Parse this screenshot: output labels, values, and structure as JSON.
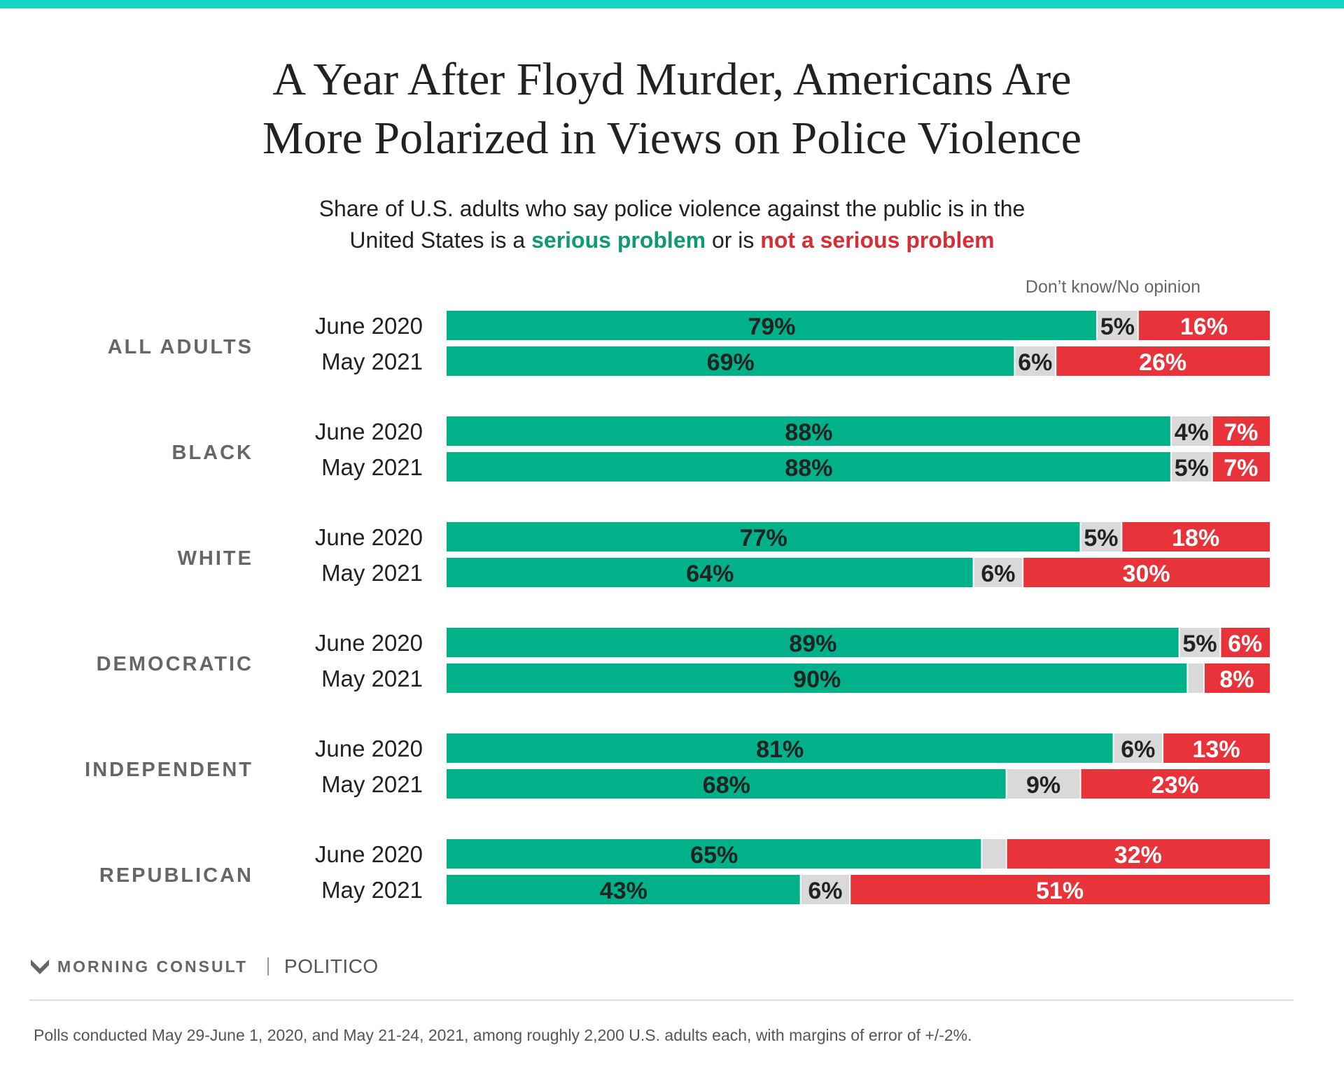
{
  "colors": {
    "serious": "#00b189",
    "dont_know": "#d9d9d9",
    "not_serious": "#e8333a",
    "top_stripe": "#14d4c4"
  },
  "header": {
    "title_line1": "A Year After Floyd Murder, Americans Are",
    "title_line2": "More Polarized in Views on Police Violence",
    "subtitle_line1": "Share of U.S. adults who say police violence against the public is in the",
    "subtitle_line2_pre": "United States is a ",
    "subtitle_serious": "serious problem",
    "subtitle_mid": " or is ",
    "subtitle_not_serious": "not a serious problem"
  },
  "chart_data": {
    "type": "bar",
    "orientation": "horizontal",
    "stacked": true,
    "normalized_total": 100,
    "unit": "%",
    "title": "A Year After Floyd Murder, Americans Are More Polarized in Views on Police Violence",
    "subtitle": "Share of U.S. adults who say police violence against the public is in the United States is a serious problem or is not a serious problem",
    "legend_note": "Don’t know/No opinion",
    "series_names": [
      "serious problem",
      "Don’t know/No opinion",
      "not a serious problem"
    ],
    "groups": [
      {
        "group": "ALL ADULTS",
        "rows": [
          {
            "label": "June 2020",
            "serious": 79,
            "dont_know": 5,
            "not_serious": 16
          },
          {
            "label": "May 2021",
            "serious": 69,
            "dont_know": 6,
            "not_serious": 26
          }
        ]
      },
      {
        "group": "BLACK",
        "rows": [
          {
            "label": "June 2020",
            "serious": 88,
            "dont_know": 4,
            "not_serious": 7
          },
          {
            "label": "May 2021",
            "serious": 88,
            "dont_know": 5,
            "not_serious": 7
          }
        ]
      },
      {
        "group": "WHITE",
        "rows": [
          {
            "label": "June 2020",
            "serious": 77,
            "dont_know": 5,
            "not_serious": 18
          },
          {
            "label": "May 2021",
            "serious": 64,
            "dont_know": 6,
            "not_serious": 30
          }
        ]
      },
      {
        "group": "DEMOCRATIC",
        "rows": [
          {
            "label": "June 2020",
            "serious": 89,
            "dont_know": 5,
            "not_serious": 6
          },
          {
            "label": "May 2021",
            "serious": 90,
            "dont_know": null,
            "not_serious": 8
          }
        ]
      },
      {
        "group": "INDEPENDENT",
        "rows": [
          {
            "label": "June 2020",
            "serious": 81,
            "dont_know": 6,
            "not_serious": 13
          },
          {
            "label": "May 2021",
            "serious": 68,
            "dont_know": 9,
            "not_serious": 23
          }
        ]
      },
      {
        "group": "REPUBLICAN",
        "rows": [
          {
            "label": "June 2020",
            "serious": 65,
            "dont_know": null,
            "not_serious": 32
          },
          {
            "label": "May 2021",
            "serious": 43,
            "dont_know": 6,
            "not_serious": 51
          }
        ]
      }
    ]
  },
  "footer": {
    "brand": "MORNING CONSULT",
    "partner": "POLITICO",
    "note": "Polls conducted May 29-June 1, 2020, and May 21-24, 2021, among roughly 2,200 U.S. adults each, with margins of error of +/-2%."
  }
}
